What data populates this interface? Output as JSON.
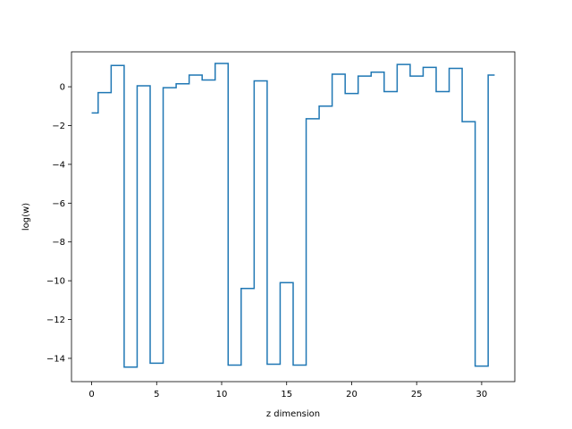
{
  "chart_data": {
    "type": "line",
    "drawstyle": "steps-mid",
    "title": "",
    "xlabel": "z dimension",
    "ylabel": "log(w)",
    "xlim": [
      -1.55,
      32.55
    ],
    "ylim": [
      -15.2,
      1.8
    ],
    "xticks": [
      0,
      5,
      10,
      15,
      20,
      25,
      30
    ],
    "yticks": [
      0,
      -2,
      -4,
      -6,
      -8,
      -10,
      -12,
      -14
    ],
    "grid": false,
    "legend": "none",
    "series": [
      {
        "color": "#1f77b4",
        "x": [
          0,
          1,
          2,
          3,
          4,
          5,
          6,
          7,
          8,
          9,
          10,
          11,
          12,
          13,
          14,
          15,
          16,
          17,
          18,
          19,
          20,
          21,
          22,
          23,
          24,
          25,
          26,
          27,
          28,
          29,
          30,
          31
        ],
        "y": [
          -1.35,
          -0.3,
          1.1,
          -14.45,
          0.05,
          -14.25,
          -0.05,
          0.15,
          0.6,
          0.35,
          1.2,
          -14.35,
          -10.4,
          0.3,
          -14.3,
          -10.1,
          -14.35,
          -1.65,
          -1.0,
          0.65,
          -0.35,
          0.55,
          0.75,
          -0.25,
          1.15,
          0.55,
          1.0,
          -0.25,
          0.95,
          -1.8,
          -14.4,
          0.6
        ]
      }
    ]
  }
}
